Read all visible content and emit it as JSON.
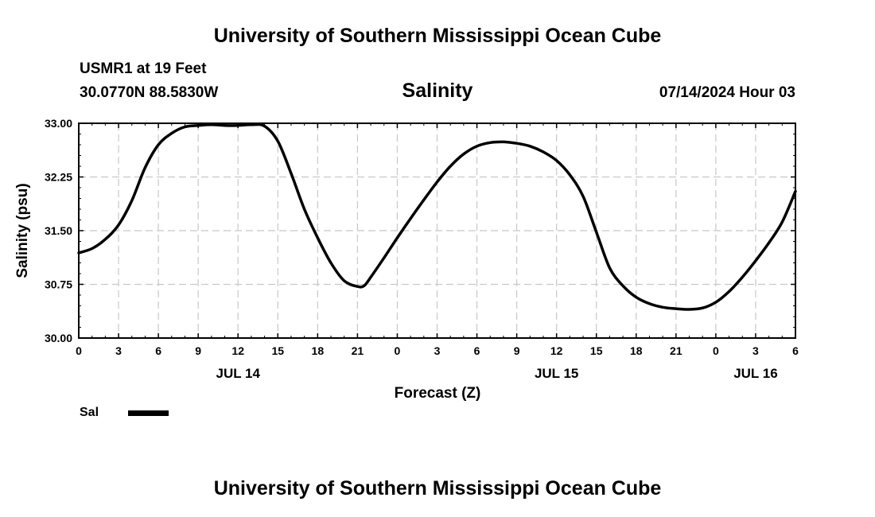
{
  "header": {
    "title_top": "University of Southern Mississippi Ocean Cube",
    "title_bottom": "University of Southern Mississippi Ocean Cube",
    "station": "USMR1 at 19 Feet",
    "location": "30.0770N  88.5830W",
    "timestamp": "07/14/2024 Hour 03"
  },
  "legend": {
    "label": "Sal"
  },
  "chart_data": {
    "type": "line",
    "title": "Salinity",
    "xlabel": "Forecast (Z)",
    "ylabel": "Salinity (psu)",
    "xlim": [
      0,
      54
    ],
    "ylim": [
      30.0,
      33.0
    ],
    "yticks": [
      "30.00",
      "30.75",
      "31.50",
      "32.25",
      "33.00"
    ],
    "xticks": [
      "0",
      "3",
      "6",
      "9",
      "12",
      "15",
      "18",
      "21",
      "0",
      "3",
      "6",
      "9",
      "12",
      "15",
      "18",
      "21",
      "0",
      "3",
      "6"
    ],
    "date_labels": [
      {
        "label": "JUL 14",
        "hour": 12
      },
      {
        "label": "JUL 15",
        "hour": 36
      },
      {
        "label": "JUL 16",
        "hour": 51
      }
    ],
    "grid": true,
    "series": [
      {
        "name": "Sal",
        "color": "#000000",
        "x": [
          0,
          1,
          2,
          3,
          4,
          5,
          6,
          7,
          8,
          9,
          10,
          11,
          12,
          13,
          14,
          15,
          16,
          17,
          18,
          19,
          20,
          21,
          21.5,
          22,
          23,
          24,
          25,
          26,
          27,
          28,
          29,
          30,
          31,
          32,
          33,
          34,
          35,
          36,
          37,
          38,
          39,
          40,
          41,
          42,
          43,
          44,
          45,
          46,
          47,
          48,
          49,
          50,
          51,
          52,
          53,
          54
        ],
        "y": [
          31.19,
          31.25,
          31.38,
          31.58,
          31.92,
          32.38,
          32.7,
          32.86,
          32.95,
          32.97,
          32.98,
          32.97,
          32.97,
          32.98,
          32.96,
          32.75,
          32.3,
          31.8,
          31.4,
          31.05,
          30.8,
          30.72,
          30.73,
          30.85,
          31.12,
          31.4,
          31.67,
          31.93,
          32.18,
          32.4,
          32.57,
          32.68,
          32.73,
          32.74,
          32.72,
          32.68,
          32.6,
          32.48,
          32.28,
          31.98,
          31.48,
          30.98,
          30.73,
          30.57,
          30.48,
          30.43,
          30.41,
          30.4,
          30.42,
          30.5,
          30.65,
          30.85,
          31.08,
          31.33,
          31.62,
          32.05
        ]
      }
    ]
  }
}
